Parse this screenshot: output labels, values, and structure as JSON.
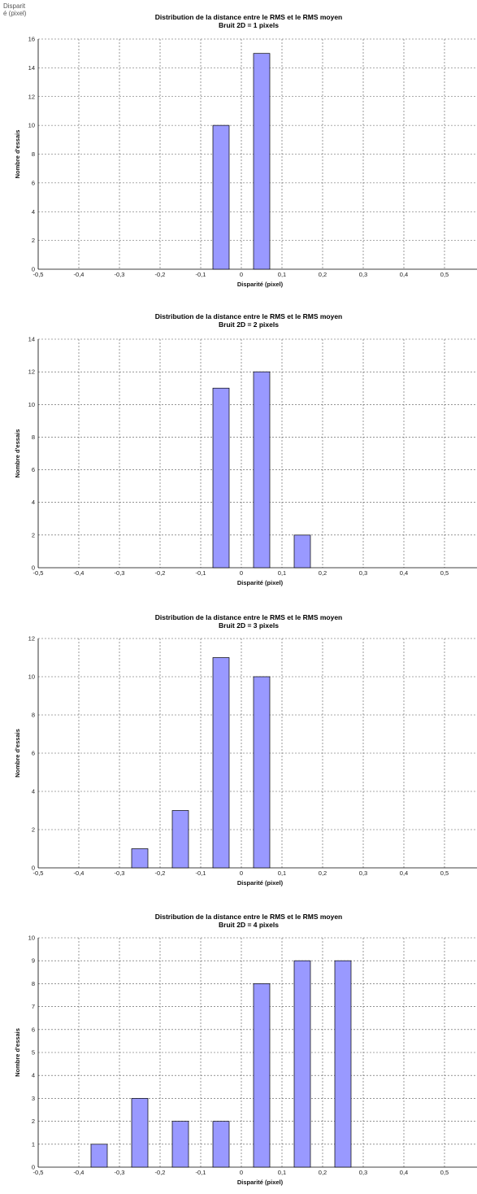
{
  "corner_label": {
    "line1": "Disparit",
    "line2": "é (pixel)"
  },
  "style": {
    "bar_fill": "#9999ff",
    "bar_stroke": "#000000",
    "grid_color": "#555555"
  },
  "chart_data": [
    {
      "type": "bar",
      "title": "Distribution de la distance entre le RMS et le RMS moyen",
      "subtitle": "Bruit 2D = 1 pixels",
      "xlabel": "Disparité (pixel)",
      "ylabel": "Nombre d'essais",
      "xlim": [
        -0.5,
        0.58
      ],
      "ylim": [
        0,
        16
      ],
      "y_step": 2,
      "x_ticks": [
        -0.5,
        -0.4,
        -0.3,
        -0.2,
        -0.1,
        0,
        0.1,
        0.2,
        0.3,
        0.4,
        0.5
      ],
      "x_tick_labels": [
        "-0,5",
        "-0,4",
        "-0,3",
        "-0,2",
        "-0,1",
        "0",
        "0,1",
        "0,2",
        "0,3",
        "0,4",
        "0,5"
      ],
      "bar_width": 0.04,
      "x": [
        -0.05,
        0.05
      ],
      "values": [
        10,
        15
      ],
      "grid": true
    },
    {
      "type": "bar",
      "title": "Distribution de la distance entre le RMS et le RMS moyen",
      "subtitle": "Bruit 2D = 2 pixels",
      "xlabel": "Disparité (pixel)",
      "ylabel": "Nombre d'essais",
      "xlim": [
        -0.5,
        0.58
      ],
      "ylim": [
        0,
        14
      ],
      "y_step": 2,
      "x_ticks": [
        -0.5,
        -0.4,
        -0.3,
        -0.2,
        -0.1,
        0,
        0.1,
        0.2,
        0.3,
        0.4,
        0.5
      ],
      "x_tick_labels": [
        "-0,5",
        "-0,4",
        "-0,3",
        "-0,2",
        "-0,1",
        "0",
        "0,1",
        "0,2",
        "0,3",
        "0,4",
        "0,5"
      ],
      "bar_width": 0.04,
      "x": [
        -0.05,
        0.05,
        0.15
      ],
      "values": [
        11,
        12,
        2
      ],
      "grid": true
    },
    {
      "type": "bar",
      "title": "Distribution de la distance entre le RMS et le RMS moyen",
      "subtitle": "Bruit 2D = 3 pixels",
      "xlabel": "Disparité (pixel)",
      "ylabel": "Nombre d'essais",
      "xlim": [
        -0.5,
        0.58
      ],
      "ylim": [
        0,
        12
      ],
      "y_step": 2,
      "x_ticks": [
        -0.5,
        -0.4,
        -0.3,
        -0.2,
        -0.1,
        0,
        0.1,
        0.2,
        0.3,
        0.4,
        0.5
      ],
      "x_tick_labels": [
        "-0,5",
        "-0,4",
        "-0,3",
        "-0,2",
        "-0,1",
        "0",
        "0,1",
        "0,2",
        "0,3",
        "0,4",
        "0,5"
      ],
      "bar_width": 0.04,
      "x": [
        -0.25,
        -0.15,
        -0.05,
        0.05
      ],
      "values": [
        1,
        3,
        11,
        10
      ],
      "grid": true
    },
    {
      "type": "bar",
      "title": "Distribution de la distance entre le RMS et le RMS moyen",
      "subtitle": "Bruit 2D = 4 pixels",
      "xlabel": "Disparité (pixel)",
      "ylabel": "Nombre d'essais",
      "xlim": [
        -0.5,
        0.58
      ],
      "ylim": [
        0,
        10
      ],
      "y_step": 1,
      "x_ticks": [
        -0.5,
        -0.4,
        -0.3,
        -0.2,
        -0.1,
        0,
        0.1,
        0.2,
        0.3,
        0.4,
        0.5
      ],
      "x_tick_labels": [
        "-0,5",
        "-0,4",
        "-0,3",
        "-0,2",
        "-0,1",
        "0",
        "0,1",
        "0,2",
        "0,3",
        "0,4",
        "0,5"
      ],
      "bar_width": 0.04,
      "x": [
        -0.35,
        -0.25,
        -0.15,
        -0.05,
        0.05,
        0.15,
        0.25
      ],
      "values": [
        1,
        3,
        2,
        2,
        8,
        9,
        9
      ],
      "grid": true
    }
  ]
}
